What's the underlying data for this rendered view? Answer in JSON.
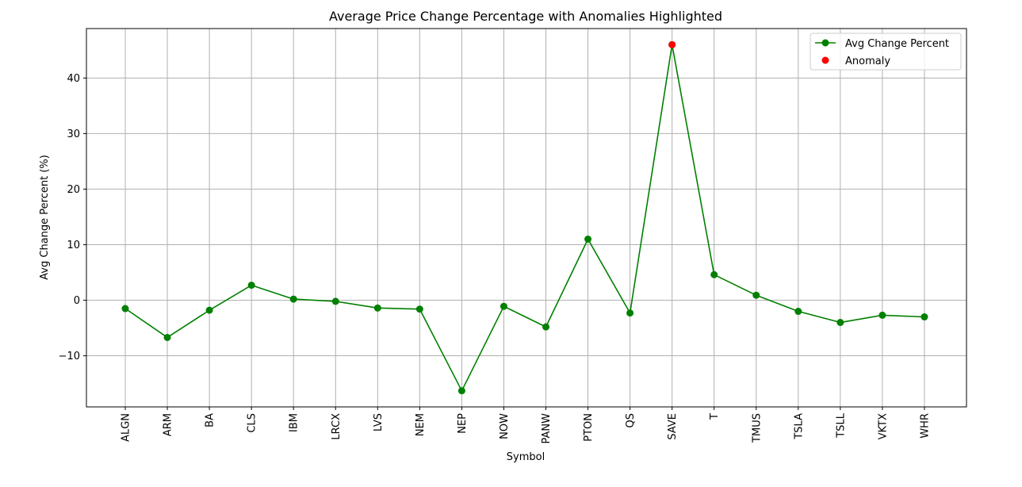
{
  "chart_data": {
    "type": "line",
    "title": "Average Price Change Percentage with Anomalies Highlighted",
    "xlabel": "Symbol",
    "ylabel": "Avg Change Percent (%)",
    "categories": [
      "ALGN",
      "ARM",
      "BA",
      "CLS",
      "IBM",
      "LRCX",
      "LVS",
      "NEM",
      "NEP",
      "NOW",
      "PANW",
      "PTON",
      "QS",
      "SAVE",
      "T",
      "TMUS",
      "TSLA",
      "TSLL",
      "VKTX",
      "WHR"
    ],
    "series": [
      {
        "name": "Avg Change Percent",
        "color": "#008000",
        "marker": "circle",
        "values": [
          -1.5,
          -6.7,
          -1.8,
          2.7,
          0.2,
          -0.2,
          -1.4,
          -1.6,
          -16.3,
          -1.1,
          -4.8,
          11.0,
          -2.3,
          46.0,
          4.6,
          0.9,
          -2.0,
          -4.0,
          -2.7,
          -3.0
        ]
      }
    ],
    "anomalies": {
      "name": "Anomaly",
      "color": "#ff0000",
      "points": [
        {
          "category": "SAVE",
          "value": 46.0
        }
      ]
    },
    "ylim": [
      -19.2,
      48.9
    ],
    "yticks": [
      -10,
      0,
      10,
      20,
      30,
      40
    ],
    "ytick_labels": [
      "−10",
      "0",
      "10",
      "20",
      "30",
      "40"
    ],
    "grid": true,
    "legend_position": "top-right"
  }
}
